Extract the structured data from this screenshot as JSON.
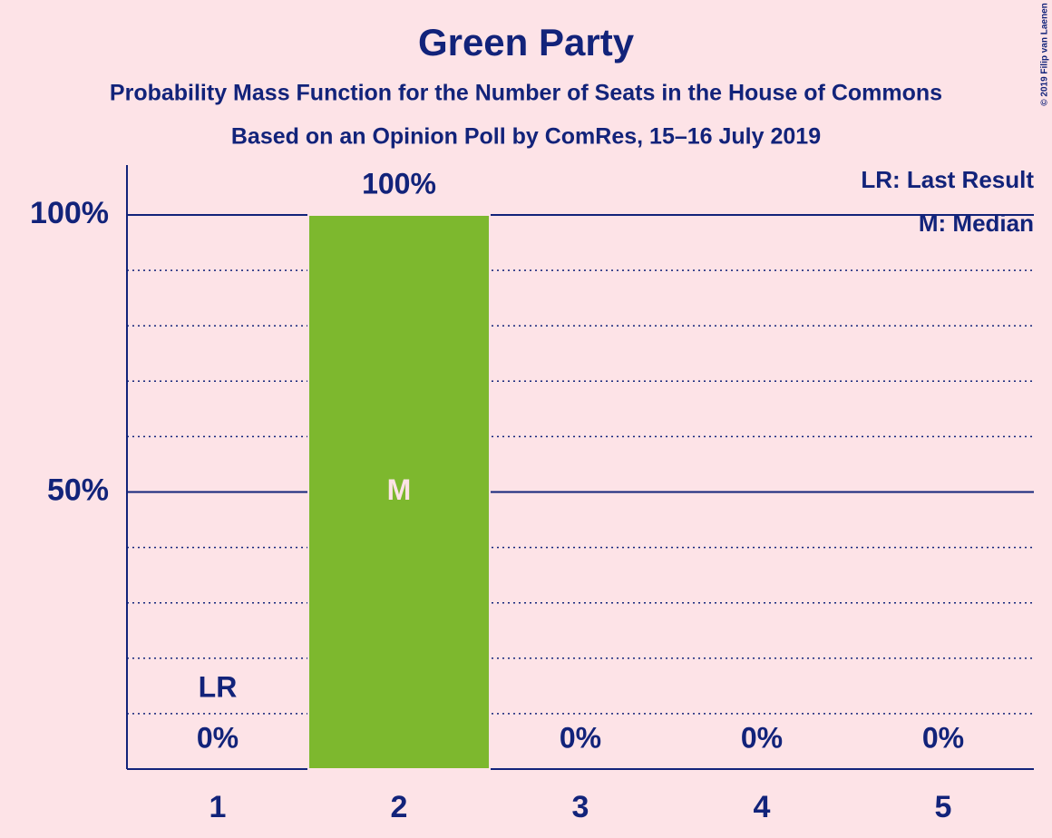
{
  "chart_data": {
    "type": "bar",
    "title": "Green Party",
    "subtitles": [
      "Probability Mass Function for the Number of Seats in the House of Commons",
      "Based on an Opinion Poll by ComRes, 15–16 July 2019"
    ],
    "credit": "© 2019 Filip van Laenen",
    "categories": [
      "1",
      "2",
      "3",
      "4",
      "5"
    ],
    "values": [
      0,
      100,
      0,
      0,
      0
    ],
    "value_labels": [
      "0%",
      "100%",
      "0%",
      "0%",
      "0%"
    ],
    "color": "#7db82e",
    "ylim": [
      0,
      109
    ],
    "yticks": [
      {
        "value": 50,
        "label": "50%"
      },
      {
        "value": 100,
        "label": "100%"
      }
    ],
    "minor_grid": [
      10,
      20,
      30,
      40,
      60,
      70,
      80,
      90
    ],
    "grid": true,
    "legend": [
      "LR: Last Result",
      "M: Median"
    ],
    "legend_position": "top-right",
    "last_result": {
      "label": "LR",
      "category": "1"
    },
    "median": {
      "label": "M",
      "category": "2"
    }
  }
}
